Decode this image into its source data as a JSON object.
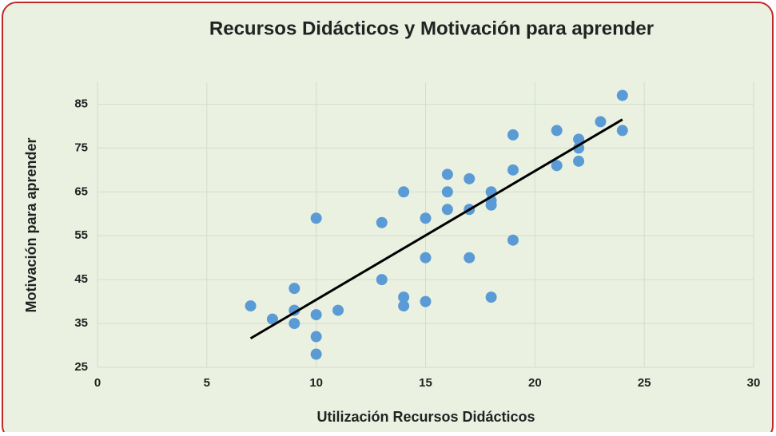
{
  "chart_data": {
    "type": "scatter",
    "title": "Recursos Didácticos y Motivación para aprender",
    "x_label": "Utilización Recursos Didácticos",
    "y_label": "Motivación para aprender",
    "color": "#5b9bd5",
    "x": [
      7,
      8,
      9,
      9,
      9,
      10,
      10,
      10,
      10,
      11,
      13,
      13,
      14,
      14,
      14,
      15,
      15,
      15,
      16,
      16,
      16,
      17,
      17,
      17,
      18,
      18,
      18,
      18,
      19,
      19,
      19,
      21,
      21,
      22,
      22,
      22,
      23,
      24,
      24
    ],
    "values": [
      39,
      36,
      43,
      38,
      35,
      59,
      37,
      32,
      28,
      38,
      58,
      45,
      65,
      41,
      39,
      59,
      50,
      40,
      69,
      65,
      61,
      68,
      61,
      50,
      65,
      63,
      62,
      41,
      78,
      70,
      54,
      79,
      71,
      77,
      75,
      72,
      81,
      87,
      79
    ],
    "trendline": {
      "x": [
        7,
        24
      ],
      "y": [
        31.6,
        81.5
      ],
      "color": "#000000"
    },
    "xlim": [
      0,
      30
    ],
    "xticks": [
      0,
      5,
      10,
      15,
      20,
      25,
      30
    ],
    "ylim": [
      25,
      90
    ],
    "yticks": [
      25,
      35,
      45,
      55,
      65,
      75,
      85
    ],
    "grid": true
  }
}
